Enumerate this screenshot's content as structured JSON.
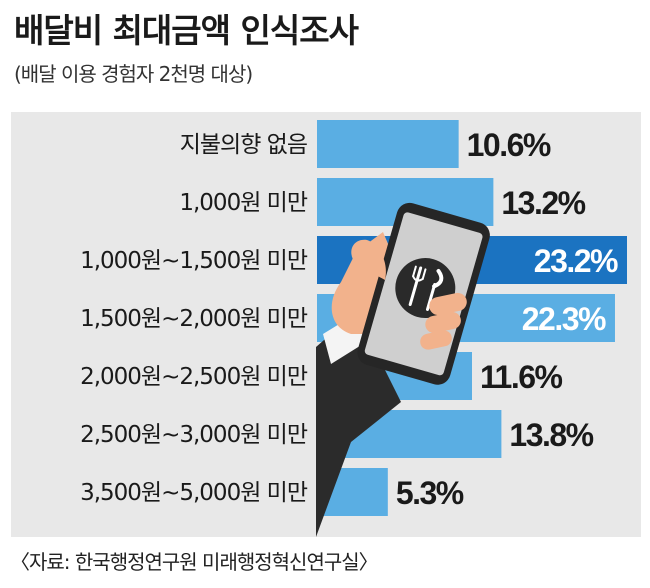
{
  "title": "배달비 최대금액 인식조사",
  "subtitle": "(배달 이용 경험자 2천명 대상)",
  "source": "〈자료: 한국행정연구원 미래행정혁신연구실〉",
  "colors": {
    "bar": "#5aaee3",
    "bar_highlight": "#1b73c1",
    "panel": "#e8e8e8",
    "label_text": "#1a1a1a",
    "value_text": "#1a1a1a",
    "value_text_inside": "#ffffff"
  },
  "illustration": "hand-holding-phone-with-fork-knife-icon",
  "chart_data": {
    "type": "bar",
    "orientation": "horizontal",
    "categories": [
      "지불의향 없음",
      "1,000원 미만",
      "1,000원~1,500원 미만",
      "1,500원~2,000원 미만",
      "2,000원~2,500원 미만",
      "2,500원~3,000원 미만",
      "3,500원~5,000원 미만"
    ],
    "values": [
      10.6,
      13.2,
      23.2,
      22.3,
      11.6,
      13.8,
      5.3
    ],
    "value_labels": [
      "10.6%",
      "13.2%",
      "23.2%",
      "22.3%",
      "11.6%",
      "13.8%",
      "5.3%"
    ],
    "highlight_index": 2,
    "inside_label_indices": [
      2,
      3
    ],
    "xlim": [
      0,
      23.2
    ],
    "grid": false,
    "legend": "none"
  }
}
